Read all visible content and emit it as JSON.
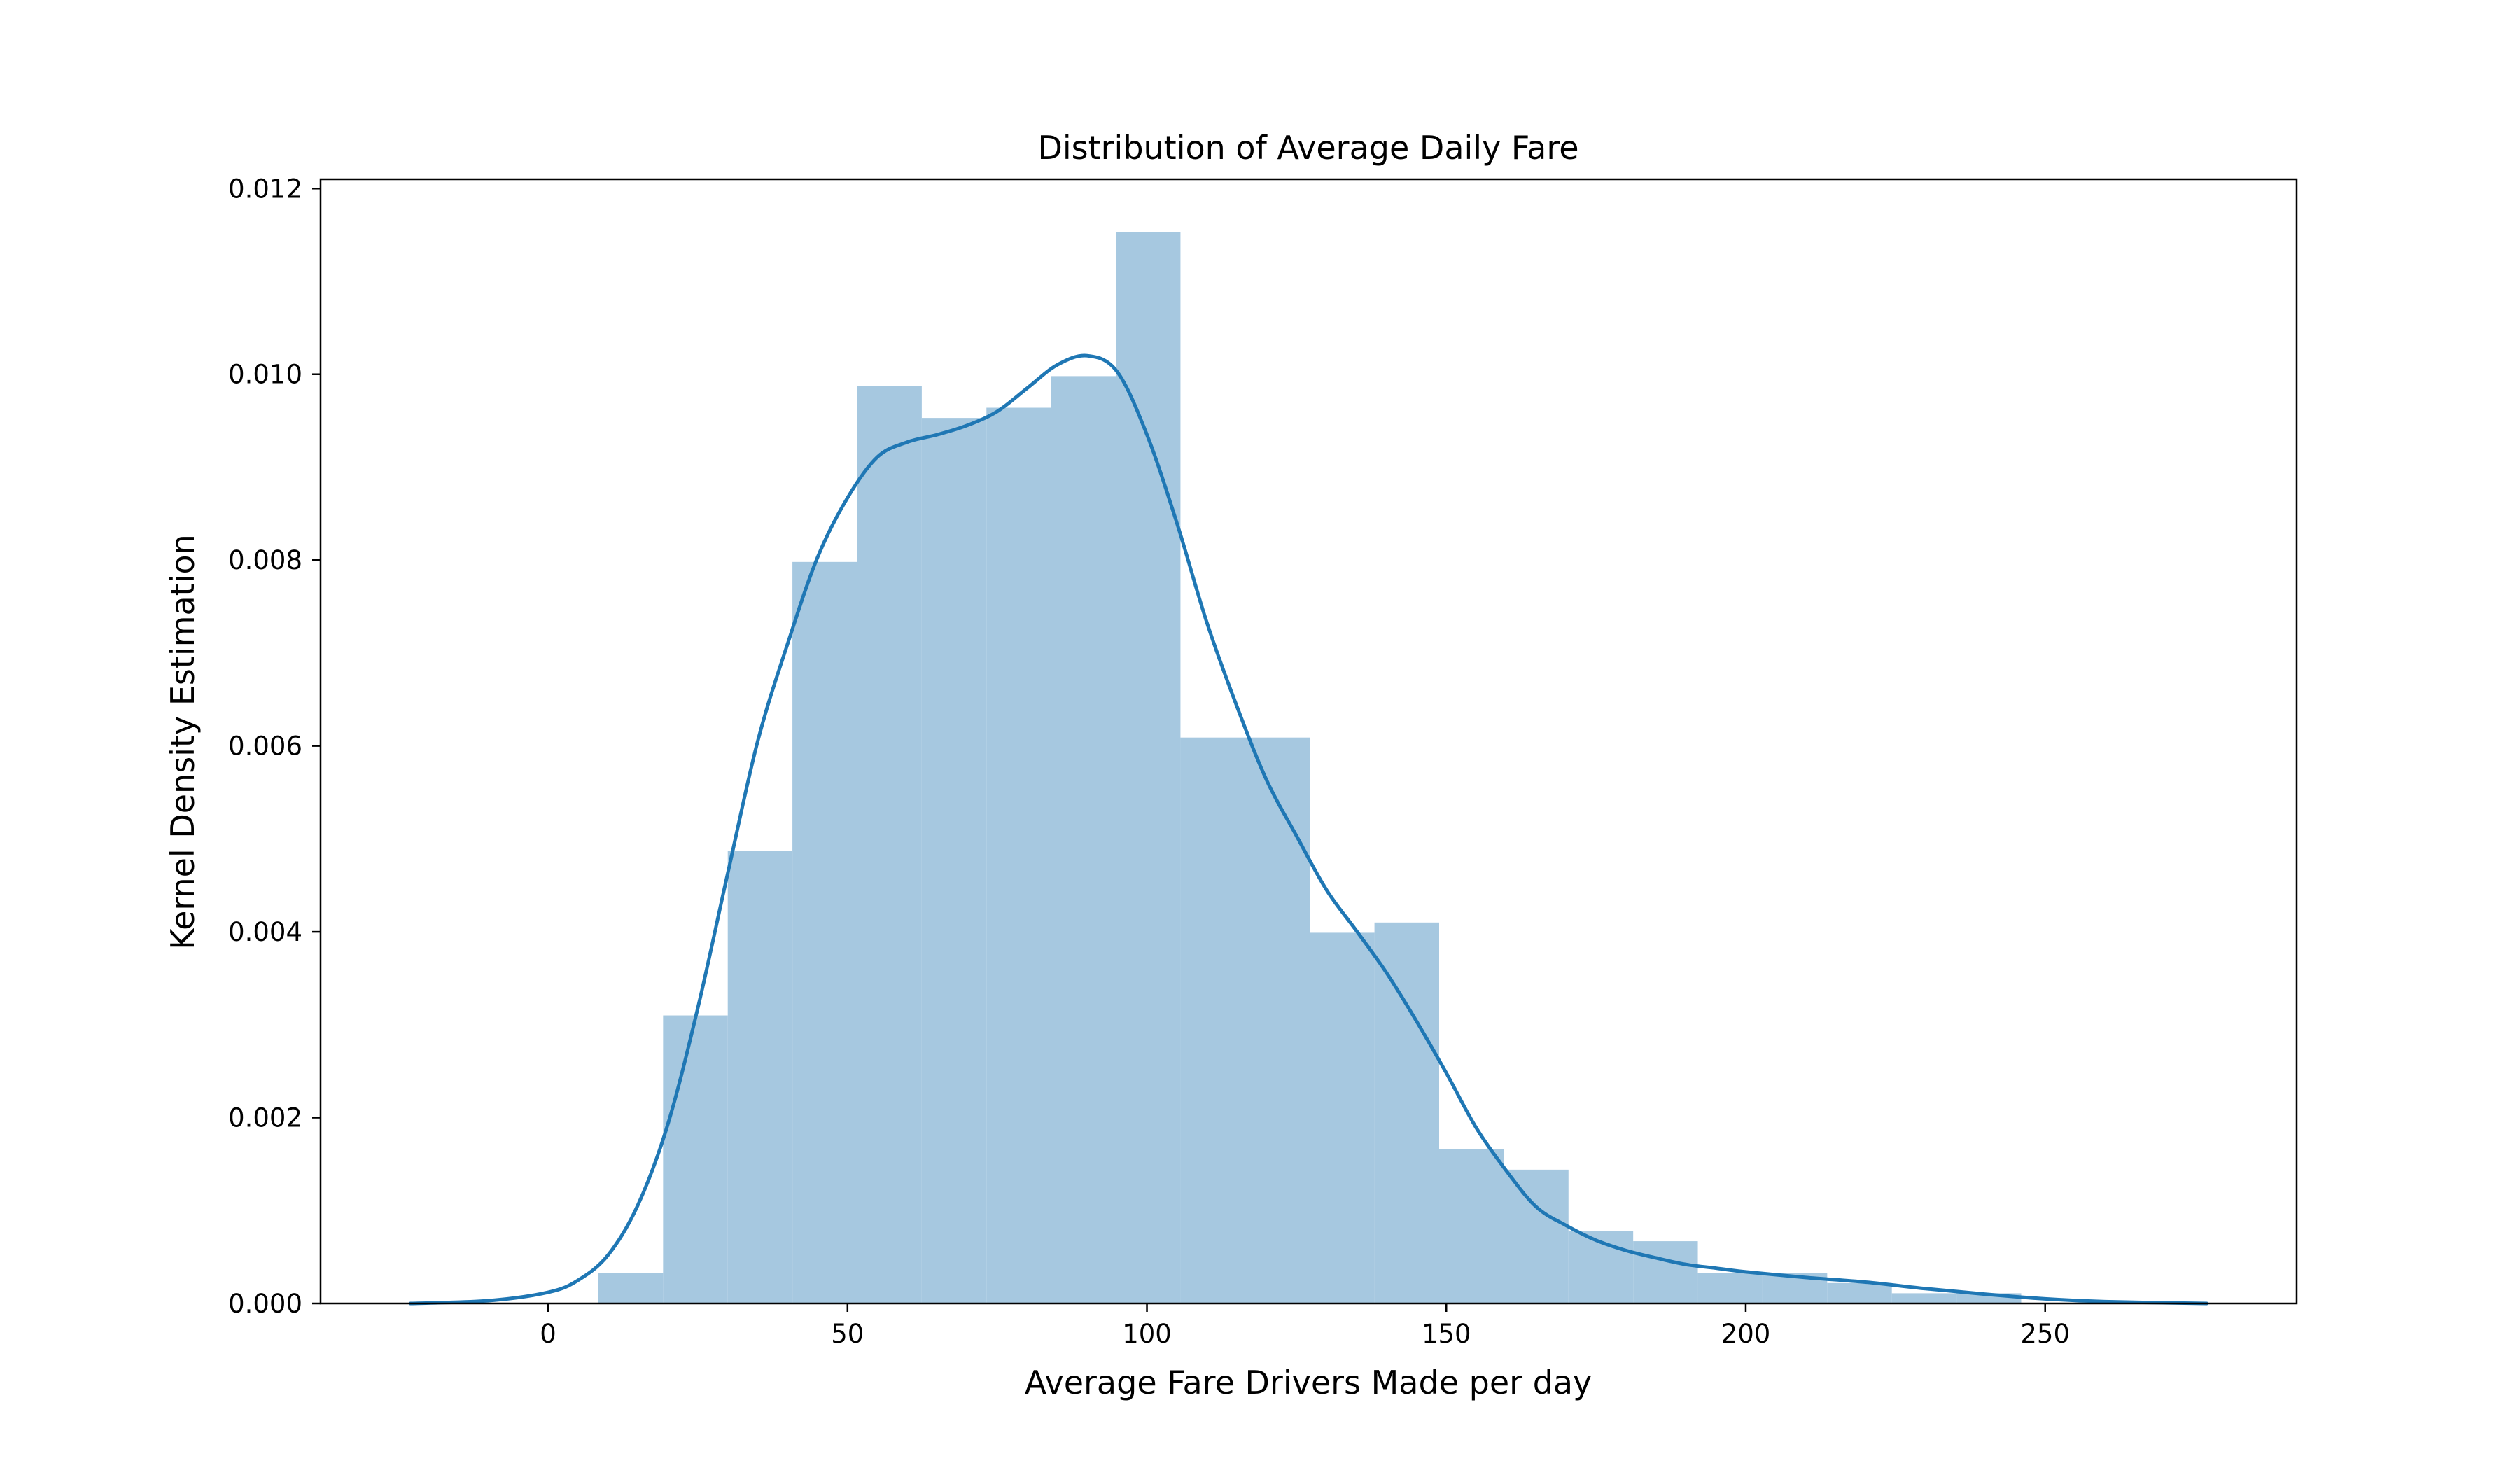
{
  "chart_data": {
    "type": "bar",
    "title": "Distribution of Average Daily Fare",
    "xlabel": "Average Fare Drivers Made per day",
    "ylabel": "Kernel Density Estimation",
    "xlim": [
      -38,
      292
    ],
    "ylim": [
      0,
      0.0121
    ],
    "x_ticks": [
      {
        "value": 0,
        "label": "0"
      },
      {
        "value": 50,
        "label": "50"
      },
      {
        "value": 100,
        "label": "100"
      },
      {
        "value": 150,
        "label": "150"
      },
      {
        "value": 200,
        "label": "200"
      },
      {
        "value": 250,
        "label": "250"
      }
    ],
    "y_ticks": [
      {
        "value": 0,
        "label": "0.000"
      },
      {
        "value": 0.002,
        "label": "0.002"
      },
      {
        "value": 0.004,
        "label": "0.004"
      },
      {
        "value": 0.006,
        "label": "0.006"
      },
      {
        "value": 0.008,
        "label": "0.008"
      },
      {
        "value": 0.01,
        "label": "0.010"
      },
      {
        "value": 0.012,
        "label": "0.012"
      }
    ],
    "histogram": {
      "color": "#a6c8e0",
      "bins": [
        {
          "x0": 8.4,
          "x1": 19.2,
          "value": 0.00033
        },
        {
          "x0": 19.2,
          "x1": 30.0,
          "value": 0.0031
        },
        {
          "x0": 30.0,
          "x1": 40.8,
          "value": 0.00487
        },
        {
          "x0": 40.8,
          "x1": 51.6,
          "value": 0.00798
        },
        {
          "x0": 51.6,
          "x1": 62.4,
          "value": 0.00987
        },
        {
          "x0": 62.4,
          "x1": 73.2,
          "value": 0.00953
        },
        {
          "x0": 73.2,
          "x1": 84.0,
          "value": 0.00964
        },
        {
          "x0": 84.0,
          "x1": 94.8,
          "value": 0.00998
        },
        {
          "x0": 94.8,
          "x1": 105.6,
          "value": 0.01153
        },
        {
          "x0": 105.6,
          "x1": 116.4,
          "value": 0.00609
        },
        {
          "x0": 116.4,
          "x1": 127.2,
          "value": 0.00609
        },
        {
          "x0": 127.2,
          "x1": 138.0,
          "value": 0.00399
        },
        {
          "x0": 138.0,
          "x1": 148.8,
          "value": 0.0041
        },
        {
          "x0": 148.8,
          "x1": 159.6,
          "value": 0.00166
        },
        {
          "x0": 159.6,
          "x1": 170.4,
          "value": 0.00144
        },
        {
          "x0": 170.4,
          "x1": 181.2,
          "value": 0.00078
        },
        {
          "x0": 181.2,
          "x1": 192.0,
          "value": 0.00067
        },
        {
          "x0": 192.0,
          "x1": 202.8,
          "value": 0.00033
        },
        {
          "x0": 202.8,
          "x1": 213.6,
          "value": 0.00033
        },
        {
          "x0": 213.6,
          "x1": 224.4,
          "value": 0.00022
        },
        {
          "x0": 224.4,
          "x1": 235.2,
          "value": 0.00011
        },
        {
          "x0": 235.2,
          "x1": 246.0,
          "value": 0.00011
        }
      ]
    },
    "kde": {
      "color": "#1f77b4",
      "x": [
        -23,
        -10,
        0,
        5,
        10,
        15,
        20,
        25,
        30,
        35,
        40,
        45,
        50,
        55,
        60,
        65,
        70,
        75,
        80,
        85,
        90,
        95,
        100,
        105,
        110,
        115,
        120,
        125,
        130,
        135,
        140,
        145,
        150,
        155,
        160,
        165,
        170,
        175,
        180,
        185,
        190,
        195,
        200,
        210,
        220,
        230,
        240,
        250,
        260,
        277
      ],
      "y": [
        0.0,
        3e-05,
        0.00012,
        0.00025,
        0.00052,
        0.00106,
        0.00193,
        0.00318,
        0.00463,
        0.00605,
        0.0071,
        0.00803,
        0.00867,
        0.00911,
        0.00927,
        0.00935,
        0.00945,
        0.0096,
        0.00985,
        0.0101,
        0.0102,
        0.01003,
        0.00935,
        0.0084,
        0.00733,
        0.00643,
        0.00563,
        0.00503,
        0.00445,
        0.00401,
        0.00356,
        0.00304,
        0.00248,
        0.00189,
        0.00143,
        0.00104,
        0.00084,
        0.00068,
        0.00057,
        0.00049,
        0.00042,
        0.00038,
        0.00034,
        0.00028,
        0.00023,
        0.00016,
        0.0001,
        5e-05,
        2e-05,
        0.0
      ]
    }
  }
}
